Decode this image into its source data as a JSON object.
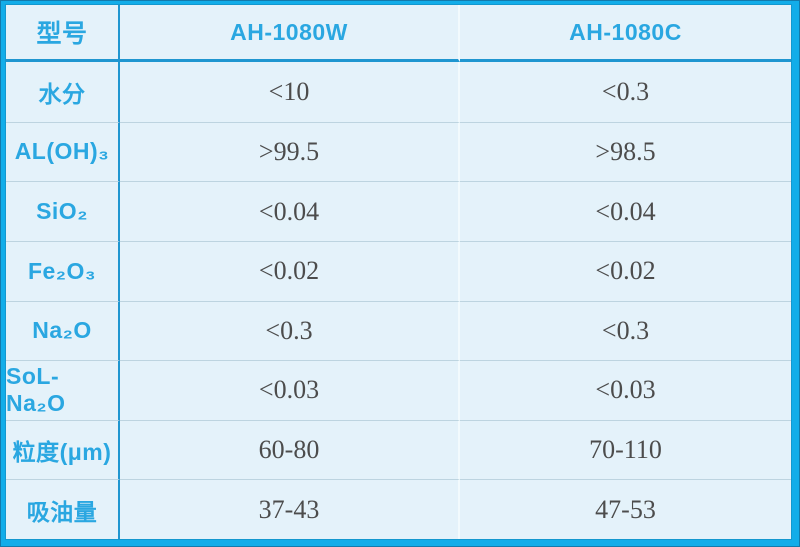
{
  "style": {
    "frame_border_color": "#12ade9",
    "accent_text_color": "#2aa7e1",
    "strong_divider_color": "#1f96d0",
    "cell_background_color": "#e4f2fa",
    "row_separator_color": "#bdd4e0",
    "value_text_color": "#4c4c4c"
  },
  "chart_data": {
    "type": "table",
    "title": "",
    "columns": [
      "型号",
      "AH-1080W",
      "AH-1080C"
    ],
    "rows": [
      {
        "label": "水分",
        "values": [
          "<10",
          "<0.3"
        ]
      },
      {
        "label": "AL(OH)₃",
        "values": [
          ">99.5",
          ">98.5"
        ]
      },
      {
        "label": "SiO₂",
        "values": [
          "<0.04",
          "<0.04"
        ]
      },
      {
        "label": "Fe₂O₃",
        "values": [
          "<0.02",
          "<0.02"
        ]
      },
      {
        "label": "Na₂O",
        "values": [
          "<0.3",
          "<0.3"
        ]
      },
      {
        "label": "SoL-Na₂O",
        "values": [
          "<0.03",
          "<0.03"
        ]
      },
      {
        "label": "粒度(μm)",
        "values": [
          "60-80",
          "70-110"
        ]
      },
      {
        "label": "吸油量",
        "values": [
          "37-43",
          "47-53"
        ]
      }
    ]
  }
}
